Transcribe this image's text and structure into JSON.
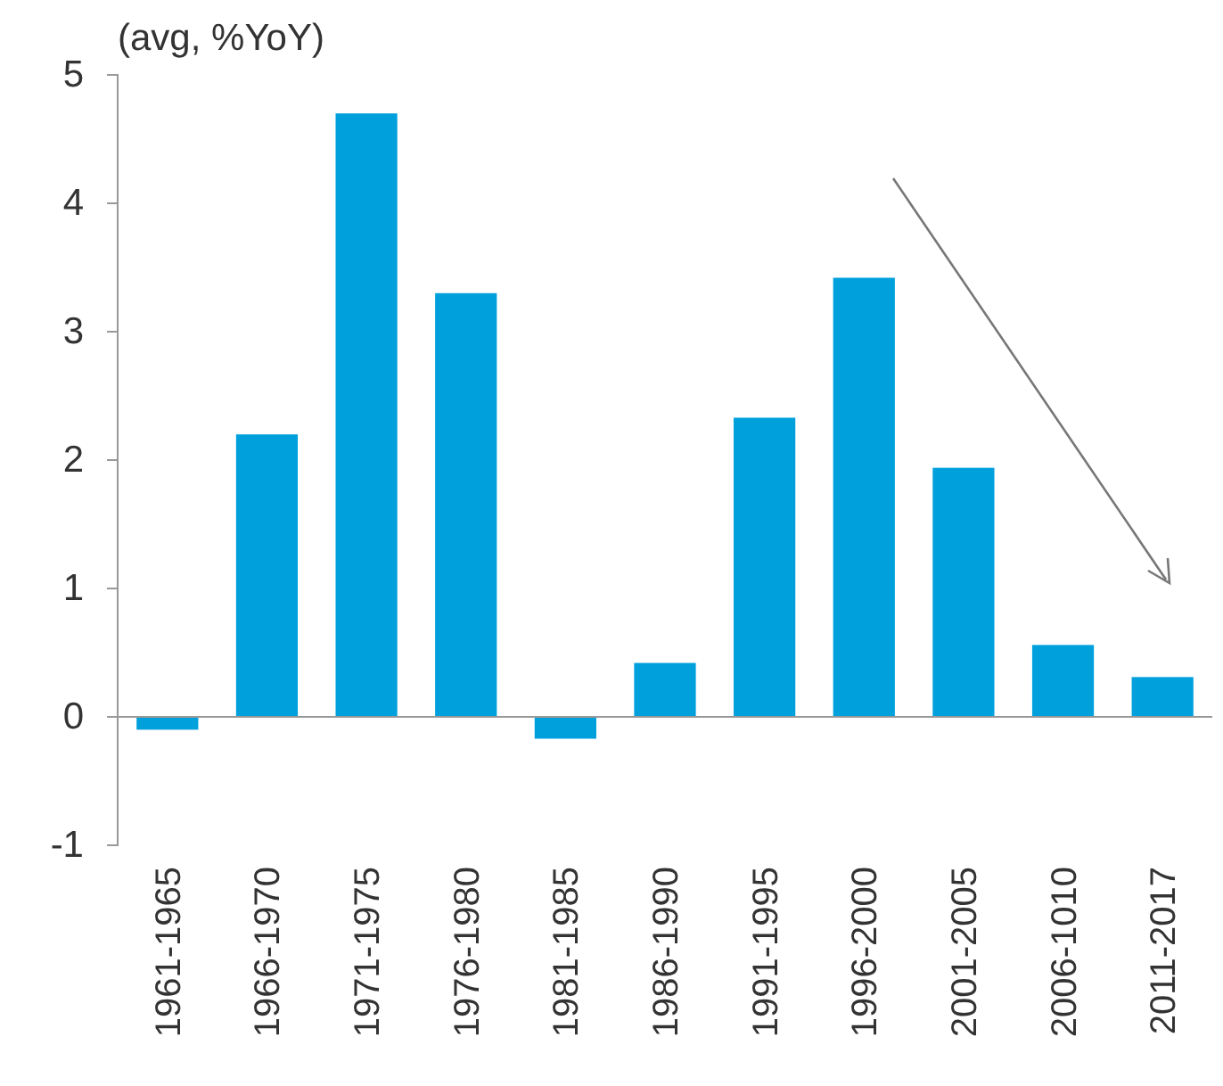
{
  "chart_data": {
    "type": "bar",
    "ylabel": "(avg, %YoY)",
    "categories": [
      "1961-1965",
      "1966-1970",
      "1971-1975",
      "1976-1980",
      "1981-1985",
      "1986-1990",
      "1991-1995",
      "1996-2000",
      "2001-2005",
      "2006-1010",
      "2011-2017"
    ],
    "series": [
      {
        "color": "#00a0dc",
        "values": [
          -0.1,
          2.2,
          4.7,
          3.3,
          -0.17,
          0.42,
          2.33,
          3.42,
          1.94,
          0.56,
          0.31
        ]
      }
    ],
    "ylim": [
      -1,
      5
    ],
    "yticks": [
      -1,
      0,
      1,
      2,
      3,
      4,
      5
    ]
  }
}
